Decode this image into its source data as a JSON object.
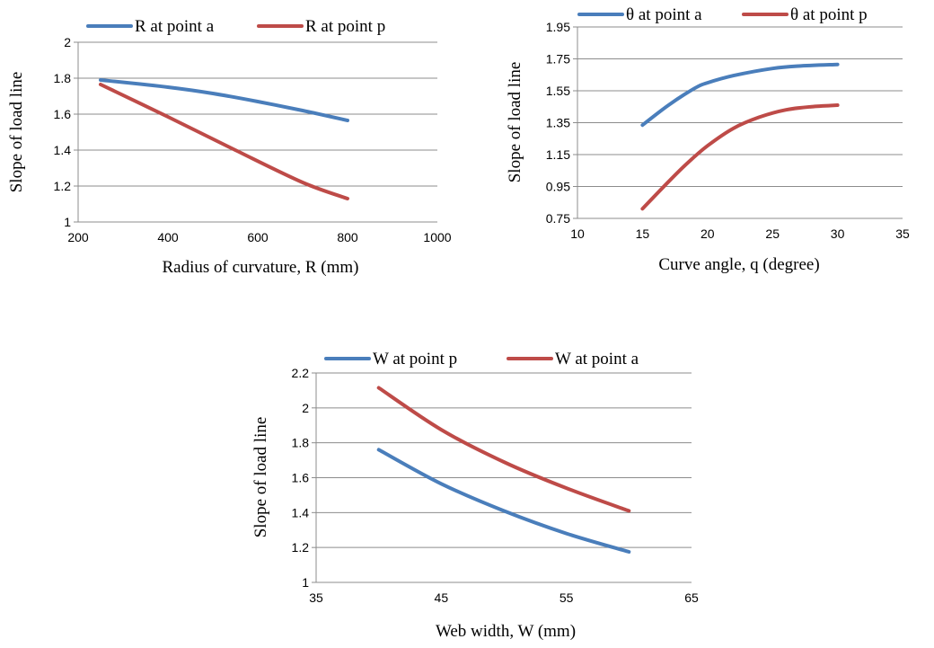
{
  "chart_data": [
    {
      "type": "line",
      "title": "",
      "xlabel": "Radius of curvature, R (mm)",
      "ylabel": "Slope of load line",
      "xlim": [
        200,
        1000
      ],
      "ylim": [
        1,
        2
      ],
      "x_ticks": [
        "200",
        "400",
        "600",
        "800",
        "1000"
      ],
      "y_ticks": [
        "1",
        "1.2",
        "1.4",
        "1.6",
        "1.8",
        "2"
      ],
      "grid": "horizontal",
      "legend_position": "top",
      "series": [
        {
          "name": "R at point a",
          "color": "#4a7ebb",
          "x": [
            250,
            400,
            500,
            600,
            700,
            800
          ],
          "y": [
            1.79,
            1.75,
            1.715,
            1.67,
            1.62,
            1.565
          ]
        },
        {
          "name": "R at point p",
          "color": "#be4b48",
          "x": [
            250,
            400,
            550,
            700,
            800
          ],
          "y": [
            1.765,
            1.585,
            1.4,
            1.22,
            1.13
          ]
        }
      ]
    },
    {
      "type": "line",
      "title": "",
      "xlabel": "Curve angle, q (degree)",
      "ylabel": "Slope of load line",
      "xlim": [
        10,
        35
      ],
      "ylim": [
        0.75,
        1.95
      ],
      "x_ticks": [
        "10",
        "15",
        "20",
        "25",
        "30",
        "35"
      ],
      "y_ticks": [
        "0.75",
        "0.95",
        "1.15",
        "1.35",
        "1.55",
        "1.75",
        "1.95"
      ],
      "grid": "horizontal",
      "legend_position": "top",
      "series": [
        {
          "name": "θ at point a",
          "color": "#4a7ebb",
          "x": [
            15,
            17,
            19,
            20,
            22,
            25,
            27,
            30
          ],
          "y": [
            1.335,
            1.46,
            1.565,
            1.6,
            1.645,
            1.69,
            1.705,
            1.715
          ]
        },
        {
          "name": "θ at point p",
          "color": "#be4b48",
          "x": [
            15,
            17,
            18.5,
            20,
            22,
            24,
            26,
            28,
            30
          ],
          "y": [
            0.81,
            0.98,
            1.1,
            1.205,
            1.315,
            1.385,
            1.43,
            1.45,
            1.46
          ]
        }
      ]
    },
    {
      "type": "line",
      "title": "",
      "xlabel": "Web width, W (mm)",
      "ylabel": "Slope of load line",
      "xlim": [
        35,
        65
      ],
      "ylim": [
        1,
        2.2
      ],
      "x_ticks": [
        "35",
        "45",
        "55",
        "65"
      ],
      "y_ticks": [
        "1",
        "1.2",
        "1.4",
        "1.6",
        "1.8",
        "2",
        "2.2"
      ],
      "grid": "horizontal",
      "legend_position": "top",
      "series": [
        {
          "name": "W at point p",
          "color": "#4a7ebb",
          "x": [
            40,
            45,
            50,
            55,
            60
          ],
          "y": [
            1.76,
            1.565,
            1.41,
            1.28,
            1.175
          ]
        },
        {
          "name": "W at point a",
          "color": "#be4b48",
          "x": [
            40,
            45,
            50,
            55,
            60
          ],
          "y": [
            2.115,
            1.875,
            1.69,
            1.54,
            1.41
          ]
        }
      ]
    }
  ]
}
